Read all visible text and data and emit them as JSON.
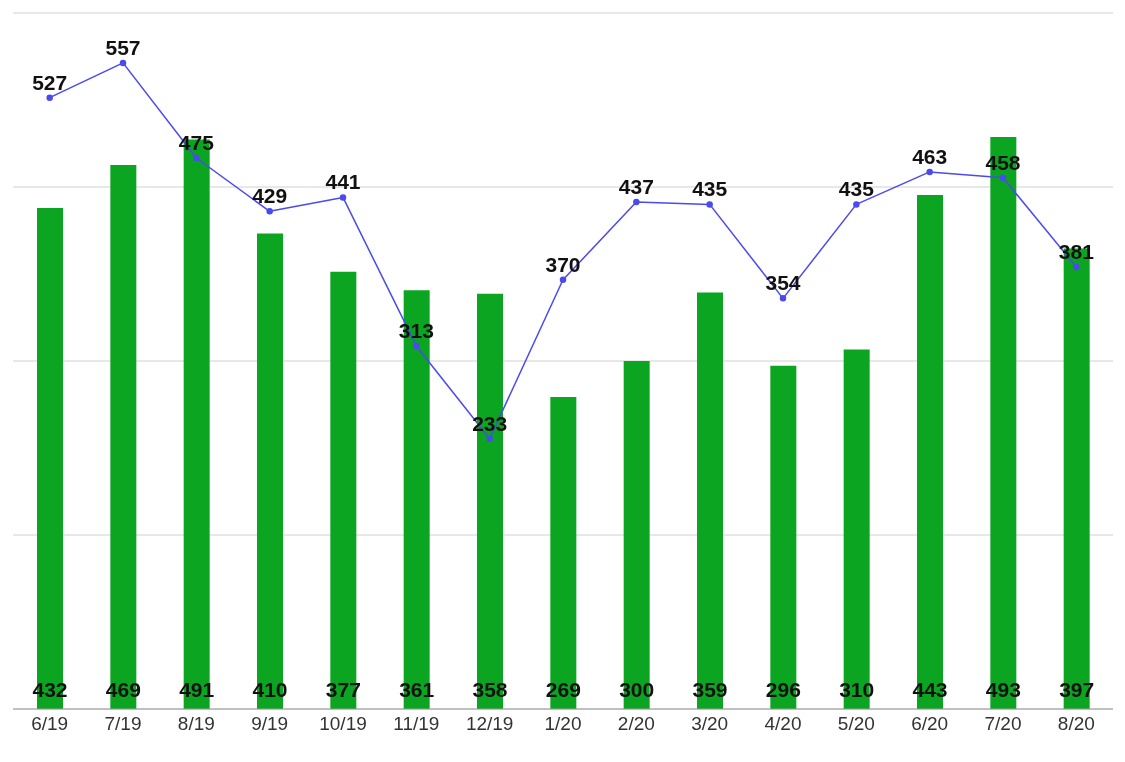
{
  "chart_data": {
    "type": "bar",
    "categories": [
      "6/19",
      "7/19",
      "8/19",
      "9/19",
      "10/19",
      "11/19",
      "12/19",
      "1/20",
      "2/20",
      "3/20",
      "4/20",
      "5/20",
      "6/20",
      "7/20",
      "8/20"
    ],
    "series": [
      {
        "color": "#0ca522",
        "values": [
          432,
          469,
          491,
          410,
          377,
          361,
          358,
          269,
          300,
          359,
          296,
          310,
          443,
          493,
          397
        ]
      },
      {
        "type": "line",
        "color": "#4a4af0",
        "values": [
          527,
          557,
          475,
          429,
          441,
          313,
          233,
          370,
          437,
          435,
          354,
          435,
          463,
          458,
          381
        ]
      }
    ],
    "ylim": [
      0,
      600
    ],
    "grid": "y",
    "tick_labels": "x",
    "data_labels": true,
    "marker": "circle",
    "line_style": "solid",
    "legend": false
  }
}
